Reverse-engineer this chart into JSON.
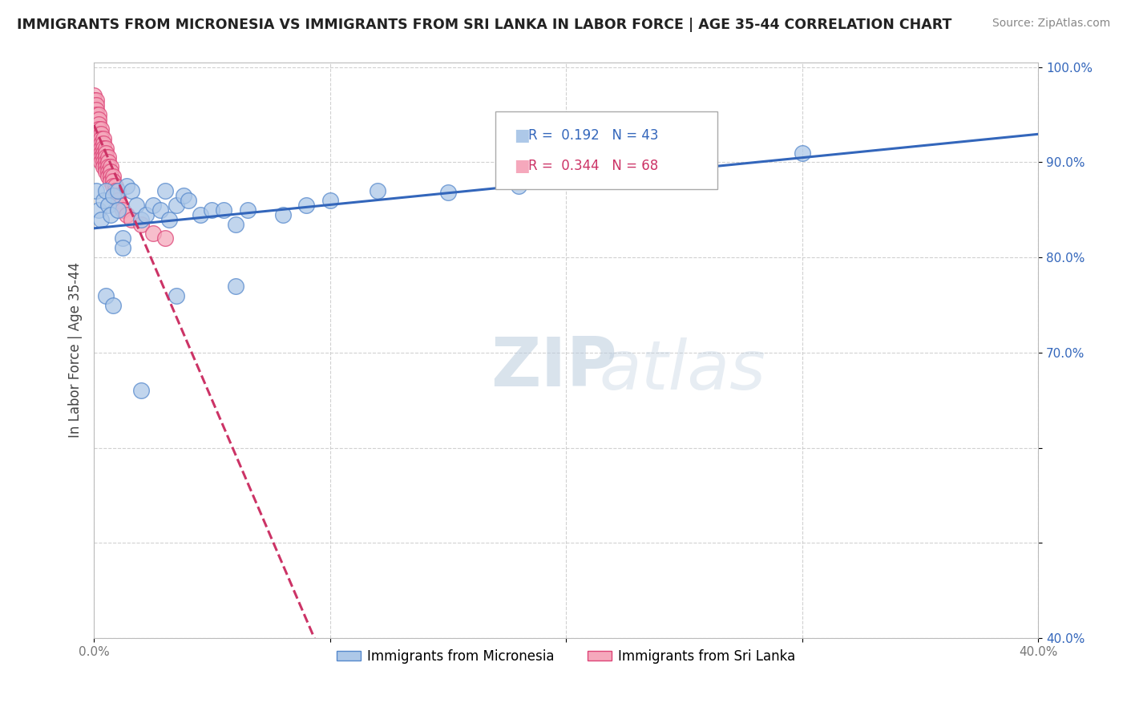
{
  "title": "IMMIGRANTS FROM MICRONESIA VS IMMIGRANTS FROM SRI LANKA IN LABOR FORCE | AGE 35-44 CORRELATION CHART",
  "source": "Source: ZipAtlas.com",
  "ylabel": "In Labor Force | Age 35-44",
  "xlim": [
    0.0,
    0.4
  ],
  "ylim": [
    0.4,
    1.005
  ],
  "legend_blue_label": "Immigrants from Micronesia",
  "legend_pink_label": "Immigrants from Sri Lanka",
  "R_blue": 0.192,
  "N_blue": 43,
  "R_pink": 0.344,
  "N_pink": 68,
  "blue_color": "#adc8e8",
  "pink_color": "#f5a8bc",
  "blue_edge_color": "#5588cc",
  "pink_edge_color": "#dd4477",
  "blue_line_color": "#3366bb",
  "pink_line_color": "#cc3366",
  "watermark_zip": "ZIP",
  "watermark_atlas": "atlas",
  "background_color": "#ffffff",
  "grid_color": "#cccccc",
  "micronesia_x": [
    0.001,
    0.002,
    0.003,
    0.004,
    0.005,
    0.006,
    0.007,
    0.008,
    0.01,
    0.01,
    0.012,
    0.014,
    0.016,
    0.018,
    0.02,
    0.022,
    0.025,
    0.028,
    0.03,
    0.032,
    0.035,
    0.038,
    0.04,
    0.045,
    0.05,
    0.055,
    0.06,
    0.065,
    0.08,
    0.09,
    0.1,
    0.12,
    0.15,
    0.18,
    0.005,
    0.008,
    0.012,
    0.2,
    0.25,
    0.3,
    0.02,
    0.035,
    0.06
  ],
  "micronesia_y": [
    0.87,
    0.85,
    0.84,
    0.86,
    0.87,
    0.855,
    0.845,
    0.865,
    0.85,
    0.87,
    0.82,
    0.875,
    0.87,
    0.855,
    0.84,
    0.845,
    0.855,
    0.85,
    0.87,
    0.84,
    0.855,
    0.865,
    0.86,
    0.845,
    0.85,
    0.85,
    0.835,
    0.85,
    0.845,
    0.855,
    0.86,
    0.87,
    0.868,
    0.875,
    0.76,
    0.75,
    0.81,
    0.885,
    0.895,
    0.91,
    0.66,
    0.76,
    0.77
  ],
  "srilanka_x": [
    0.0,
    0.0,
    0.0,
    0.0,
    0.0,
    0.0,
    0.0,
    0.0,
    0.001,
    0.001,
    0.001,
    0.001,
    0.001,
    0.001,
    0.001,
    0.001,
    0.002,
    0.002,
    0.002,
    0.002,
    0.002,
    0.002,
    0.002,
    0.002,
    0.003,
    0.003,
    0.003,
    0.003,
    0.003,
    0.003,
    0.003,
    0.003,
    0.004,
    0.004,
    0.004,
    0.004,
    0.004,
    0.004,
    0.004,
    0.005,
    0.005,
    0.005,
    0.005,
    0.005,
    0.005,
    0.006,
    0.006,
    0.006,
    0.006,
    0.006,
    0.007,
    0.007,
    0.007,
    0.007,
    0.008,
    0.008,
    0.008,
    0.009,
    0.009,
    0.01,
    0.01,
    0.011,
    0.012,
    0.014,
    0.016,
    0.02,
    0.025,
    0.03
  ],
  "srilanka_y": [
    0.97,
    0.965,
    0.96,
    0.958,
    0.955,
    0.95,
    0.945,
    0.94,
    0.965,
    0.96,
    0.955,
    0.95,
    0.945,
    0.94,
    0.935,
    0.93,
    0.95,
    0.945,
    0.94,
    0.935,
    0.93,
    0.925,
    0.92,
    0.915,
    0.935,
    0.93,
    0.925,
    0.92,
    0.915,
    0.91,
    0.905,
    0.9,
    0.925,
    0.92,
    0.915,
    0.91,
    0.905,
    0.9,
    0.895,
    0.915,
    0.91,
    0.905,
    0.9,
    0.895,
    0.89,
    0.905,
    0.9,
    0.895,
    0.89,
    0.885,
    0.895,
    0.89,
    0.885,
    0.88,
    0.885,
    0.88,
    0.875,
    0.875,
    0.87,
    0.865,
    0.86,
    0.855,
    0.85,
    0.845,
    0.84,
    0.835,
    0.825,
    0.82
  ]
}
